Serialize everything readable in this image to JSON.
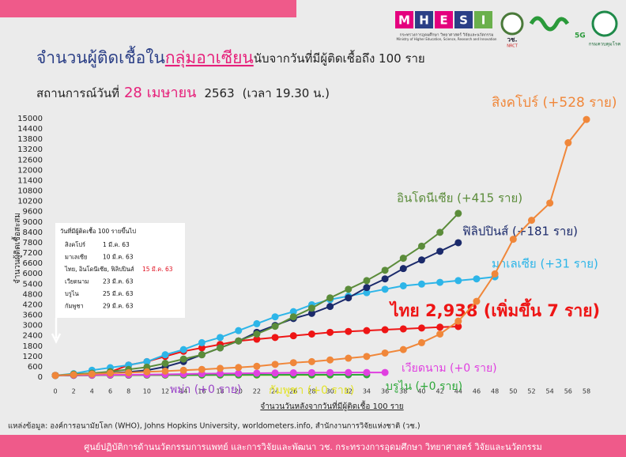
{
  "header": {
    "title_prefix": "จำนวนผู้ติดเชื้อใน",
    "title_highlight": "กลุ่มอาเซียน",
    "title_suffix": "นับจากวันที่มีผู้ติดเชื้อถึง 100 ราย",
    "status_label": "สถานการณ์วันที่",
    "status_date": "28 เมษายน",
    "status_year": "2563",
    "status_time": "(เวลา 19.30 น.)"
  },
  "logos": {
    "mhesi_letters": [
      "M",
      "H",
      "E",
      "S",
      "I"
    ],
    "mhesi_th": "กระทรวงการอุดมศึกษา วิทยาศาสตร์ วิจัยและนวัตกรรม",
    "mhesi_en": "Ministry of Higher Education, Science, Research and Innovation",
    "nrct_th": "วช.",
    "nrct_en": "NRCT",
    "fiveg": "5G",
    "ddc": "กรมควบคุมโรค"
  },
  "inset": {
    "heading": "วันที่มีผู้ติดเชื้อ 100 รายขึ้นไป",
    "rows": [
      [
        "สิงคโปร์",
        "1 มี.ค. 63"
      ],
      [
        "มาเลเซีย",
        "10 มี.ค. 63"
      ],
      [
        "ไทย, อินโดนีเซีย, ฟิลิปปินส์",
        "15 มี.ค. 63"
      ],
      [
        "เวียดนาม",
        "23 มี.ค. 63"
      ],
      [
        "บรูไน",
        "25 มี.ค. 63"
      ],
      [
        "กัมพูชา",
        "29 มี.ค. 63"
      ]
    ]
  },
  "chart_data": {
    "type": "line",
    "x_label": "จำนวนวันหลังจากวันที่มีผู้ติดเชื้อ 100 ราย",
    "y_label": "จำนวนผู้ติดเชื้อสะสม",
    "x": [
      0,
      2,
      4,
      6,
      8,
      10,
      12,
      14,
      16,
      18,
      20,
      22,
      24,
      26,
      28,
      30,
      32,
      34,
      36,
      38,
      40,
      42,
      44,
      46,
      48,
      50,
      52,
      54,
      56,
      58
    ],
    "xlim": [
      0,
      58
    ],
    "xticks": [
      0,
      2,
      4,
      6,
      8,
      10,
      12,
      14,
      16,
      18,
      20,
      22,
      24,
      26,
      28,
      30,
      32,
      34,
      36,
      38,
      40,
      42,
      44,
      46,
      48,
      50,
      52,
      54,
      56,
      58
    ],
    "ylim": [
      0,
      15000
    ],
    "yticks": [
      0,
      600,
      1200,
      1800,
      2400,
      3000,
      3600,
      4200,
      4800,
      5400,
      6000,
      6600,
      7200,
      7800,
      8400,
      9000,
      9600,
      10200,
      10800,
      11400,
      12000,
      12600,
      13200,
      13800,
      14400,
      15000
    ],
    "series": [
      {
        "name": "สิงคโปร์ (+528 ราย)",
        "color": "#f0873a",
        "values": [
          100,
          140,
          180,
          230,
          260,
          310,
          350,
          400,
          450,
          510,
          560,
          630,
          740,
          840,
          900,
          1000,
          1100,
          1200,
          1400,
          1600,
          2000,
          2500,
          3250,
          4400,
          5990,
          8000,
          9100,
          10100,
          13600,
          14950
        ]
      },
      {
        "name": "อินโดนีเซีย (+415 ราย)",
        "color": "#5b8c3a",
        "values": [
          100,
          170,
          230,
          320,
          450,
          580,
          800,
          1050,
          1300,
          1700,
          2100,
          2500,
          2950,
          3500,
          4000,
          4600,
          5100,
          5600,
          6200,
          6900,
          7600,
          8400,
          9500,
          null,
          null,
          null,
          null,
          null,
          null,
          null
        ]
      },
      {
        "name": "ฟิลิปปินส์ (+181 ราย)",
        "color": "#1b2a6b",
        "values": [
          100,
          140,
          190,
          240,
          300,
          400,
          600,
          900,
          1300,
          1700,
          2100,
          2600,
          3000,
          3400,
          3700,
          4100,
          4600,
          5200,
          5700,
          6300,
          6800,
          7300,
          7800,
          null,
          null,
          null,
          null,
          null,
          null,
          null
        ]
      },
      {
        "name": "มาเลเซีย (+31 ราย)",
        "color": "#2db5e8",
        "values": [
          100,
          200,
          400,
          550,
          700,
          900,
          1300,
          1600,
          2000,
          2300,
          2700,
          3100,
          3500,
          3800,
          4200,
          4500,
          4700,
          4900,
          5100,
          5300,
          5400,
          5500,
          5600,
          5700,
          5820,
          null,
          null,
          null,
          null,
          null
        ]
      },
      {
        "name": "ไทย 2,938 (เพิ่มขึ้น 7 ราย)",
        "color": "#ee1515",
        "values": [
          100,
          150,
          200,
          300,
          700,
          900,
          1200,
          1500,
          1700,
          1900,
          2100,
          2200,
          2300,
          2400,
          2500,
          2600,
          2650,
          2700,
          2750,
          2800,
          2850,
          2900,
          2938,
          null,
          null,
          null,
          null,
          null,
          null,
          null
        ]
      },
      {
        "name": "เวียดนาม (+0 ราย)",
        "color": "#e040e0",
        "values": [
          100,
          110,
          120,
          130,
          140,
          150,
          160,
          180,
          200,
          210,
          220,
          230,
          240,
          250,
          260,
          265,
          268,
          270,
          270,
          null,
          null,
          null,
          null,
          null,
          null,
          null,
          null,
          null,
          null,
          null
        ]
      },
      {
        "name": "บรูไน (+0 ราย)",
        "color": "#2ea83a",
        "values": [
          100,
          105,
          110,
          115,
          120,
          125,
          126,
          127,
          128,
          130,
          131,
          132,
          134,
          135,
          136,
          137,
          138,
          138,
          null,
          null,
          null,
          null,
          null,
          null,
          null,
          null,
          null,
          null,
          null,
          null
        ]
      },
      {
        "name": "พม่า (+0 ราย)",
        "color": "#9b45c8",
        "values": [
          100,
          105,
          110,
          115,
          120,
          125,
          128,
          130,
          132,
          134,
          136,
          138,
          140,
          142,
          144,
          145,
          146,
          null,
          null,
          null,
          null,
          null,
          null,
          null,
          null,
          null,
          null,
          null,
          null,
          null
        ]
      },
      {
        "name": "กัมพูชา (+0 ราย)",
        "color": "#e3e32a",
        "values": [
          100,
          103,
          106,
          109,
          111,
          113,
          114,
          115,
          117,
          119,
          119,
          120,
          122,
          122,
          122,
          122,
          null,
          null,
          null,
          null,
          null,
          null,
          null,
          null,
          null,
          null,
          null,
          null,
          null,
          null
        ]
      }
    ]
  },
  "source": "แหล่งข้อมูล: องค์การอนามัยโลก (WHO), Johns Hopkins University, worldometers.info, สำนักงานการวิจัยแห่งชาติ (วช.)",
  "footer": "ศูนย์ปฏิบัติการด้านนวัตกรรมการแพทย์ และการวิจัยและพัฒนา วช.   กระทรวงการอุดมศึกษา วิทยาศาสตร์ วิจัยและนวัตกรรม"
}
